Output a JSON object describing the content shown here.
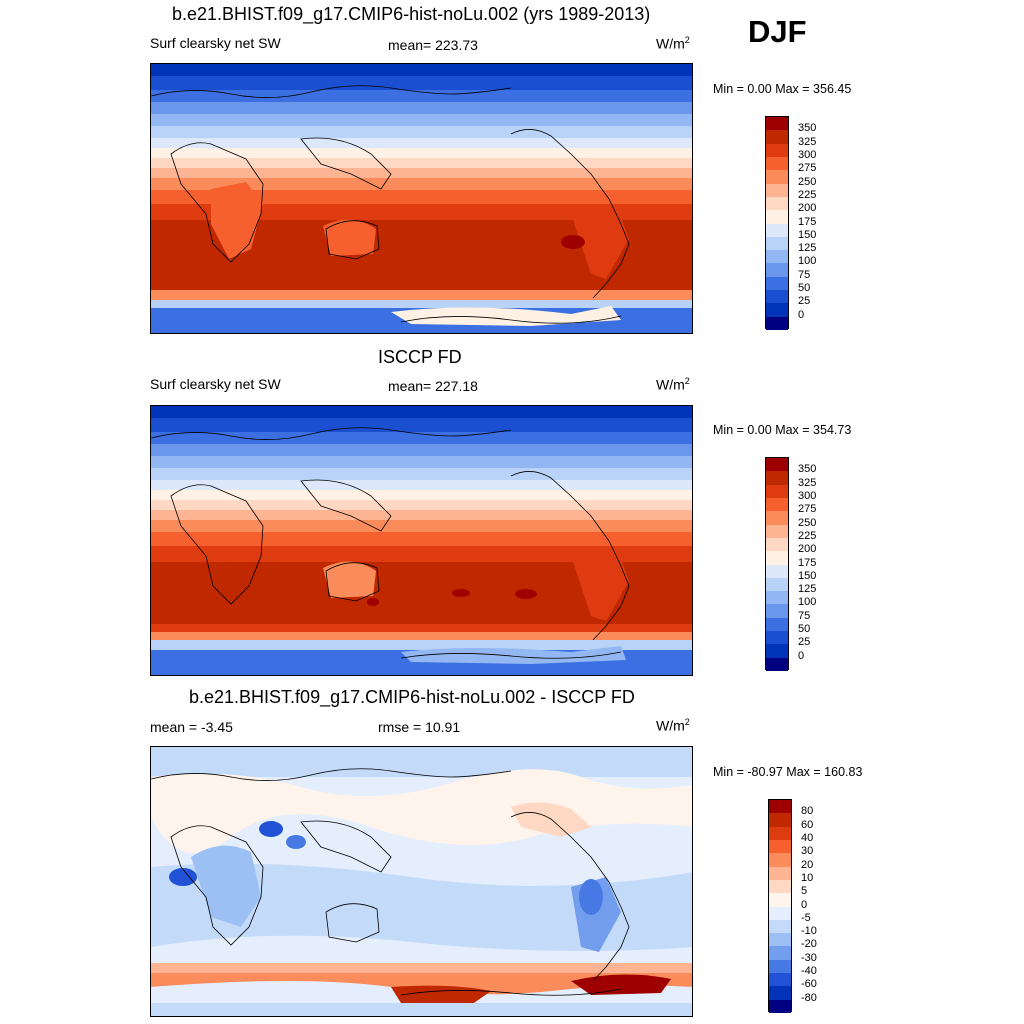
{
  "season": "DJF",
  "colorbar_colors_8": [
    "#9e0000",
    "#c02800",
    "#de3c10",
    "#f5602e",
    "#fa8c5c",
    "#fdb493",
    "#fed8c2",
    "#fff1e4",
    "#dde9fb",
    "#b9d3f8",
    "#93b7f3",
    "#6a97ec",
    "#3c6fe2",
    "#1b4fd2",
    "#0033b8",
    "#000080"
  ],
  "colorbar_colors_diff": [
    "#9e0000",
    "#c02800",
    "#de3c10",
    "#f5602e",
    "#fa8c5c",
    "#fdb493",
    "#fed8c2",
    "#fff4ec",
    "#e4eefc",
    "#c3daf9",
    "#9cbff4",
    "#739ded",
    "#4679e4",
    "#2152d6",
    "#0033b8",
    "#000080"
  ],
  "panels": [
    {
      "title": "b.e21.BHIST.f09_g17.CMIP6-hist-noLu.002 (yrs 1989-2013)",
      "left_label": "Surf clearsky net SW",
      "center_label": "mean= 223.73",
      "units": "W/m",
      "units_exp": "2",
      "minmax": "Min =   0.00 Max = 356.45",
      "colorbar_labels": [
        "350",
        "325",
        "300",
        "275",
        "250",
        "225",
        "200",
        "175",
        "150",
        "125",
        "100",
        "75",
        "50",
        "25",
        "0"
      ]
    },
    {
      "title": "ISCCP FD",
      "left_label": "Surf clearsky net SW",
      "center_label": "mean= 227.18",
      "units": "W/m",
      "units_exp": "2",
      "minmax": "Min =   0.00 Max = 354.73",
      "colorbar_labels": [
        "350",
        "325",
        "300",
        "275",
        "250",
        "225",
        "200",
        "175",
        "150",
        "125",
        "100",
        "75",
        "50",
        "25",
        "0"
      ]
    },
    {
      "title": "b.e21.BHIST.f09_g17.CMIP6-hist-noLu.002 - ISCCP FD",
      "left_label": "mean =  -3.45",
      "center_label": "rmse =  10.91",
      "units": "W/m",
      "units_exp": "2",
      "minmax": "Min = -80.97 Max = 160.83",
      "colorbar_labels": [
        "80",
        "60",
        "40",
        "30",
        "20",
        "10",
        "5",
        "0",
        "-5",
        "-10",
        "-20",
        "-30",
        "-40",
        "-60",
        "-80"
      ]
    }
  ]
}
